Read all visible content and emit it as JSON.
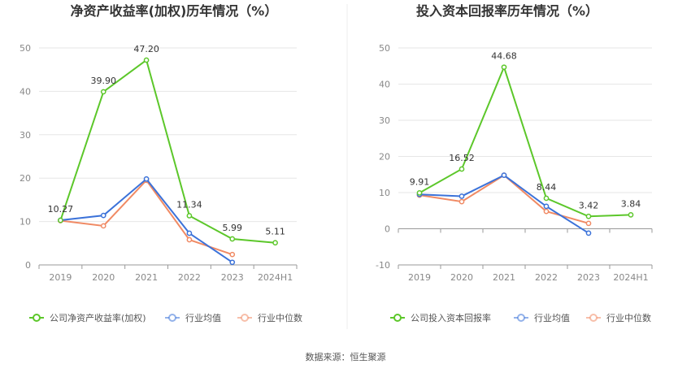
{
  "colors": {
    "company": "#5cc72a",
    "avg": "#3b72d9",
    "median": "#f08a64",
    "grid": "#e6e6e6",
    "axis": "#999999"
  },
  "source_label": "数据来源：恒生聚源",
  "chart_data": [
    {
      "type": "line",
      "title": "净资产收益率(加权)历年情况（%）",
      "categories": [
        "2019",
        "2020",
        "2021",
        "2022",
        "2023",
        "2024H1"
      ],
      "ylim": [
        0,
        50
      ],
      "yticks": [
        0,
        10,
        20,
        30,
        40,
        50
      ],
      "series": [
        {
          "name": "公司净资产收益率(加权)",
          "key": "company",
          "values": [
            10.27,
            39.9,
            47.2,
            11.34,
            5.99,
            5.11
          ],
          "labels": [
            "10.27",
            "39.90",
            "47.20",
            "11.34",
            "5.99",
            "5.11"
          ]
        },
        {
          "name": "行业均值",
          "key": "avg",
          "values": [
            10.3,
            11.4,
            19.8,
            7.3,
            0.6,
            null
          ]
        },
        {
          "name": "行业中位数",
          "key": "median",
          "values": [
            10.2,
            9.0,
            19.5,
            5.8,
            2.4,
            null
          ]
        }
      ]
    },
    {
      "type": "line",
      "title": "投入资本回报率历年情况（%）",
      "categories": [
        "2019",
        "2020",
        "2021",
        "2022",
        "2023",
        "2024H1"
      ],
      "ylim": [
        -10,
        50
      ],
      "yticks": [
        -10,
        0,
        10,
        20,
        30,
        40,
        50
      ],
      "series": [
        {
          "name": "公司投入资本回报率",
          "key": "company",
          "values": [
            9.91,
            16.52,
            44.68,
            8.44,
            3.42,
            3.84
          ],
          "labels": [
            "9.91",
            "16.52",
            "44.68",
            "8.44",
            "3.42",
            "3.84"
          ]
        },
        {
          "name": "行业均值",
          "key": "avg",
          "values": [
            9.5,
            9.0,
            14.8,
            6.2,
            -1.2,
            null
          ]
        },
        {
          "name": "行业中位数",
          "key": "median",
          "values": [
            9.3,
            7.5,
            14.8,
            4.8,
            1.5,
            null
          ]
        }
      ]
    }
  ]
}
